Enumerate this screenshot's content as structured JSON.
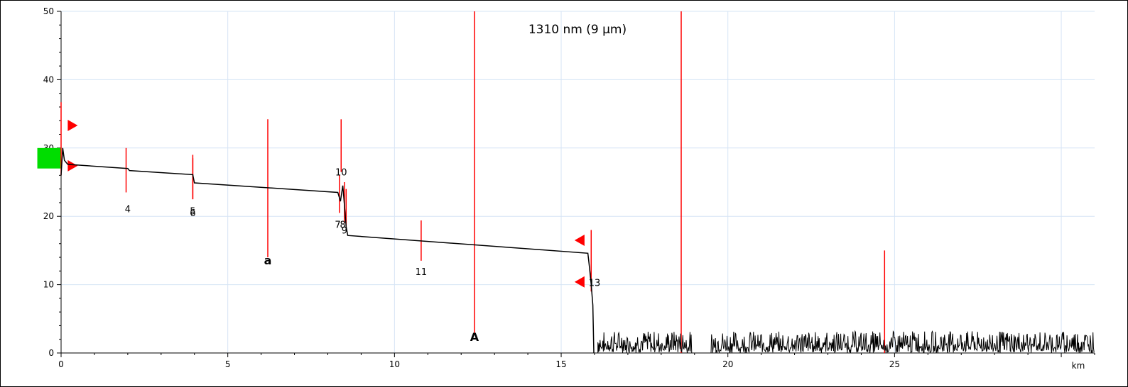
{
  "chart_data": {
    "type": "line",
    "title": "1310 nm (9 µm)",
    "x_unit": "km",
    "xlim": [
      0,
      31
    ],
    "ylim": [
      0,
      50
    ],
    "x_ticks": [
      0,
      5,
      10,
      15,
      20,
      25
    ],
    "x_tick_labels": [
      "0",
      "5",
      "10",
      "15",
      "20",
      "25"
    ],
    "y_ticks": [
      0,
      10,
      20,
      30,
      40,
      50
    ],
    "y_tick_labels": [
      "0",
      "10",
      "20",
      "30",
      "40",
      "50"
    ],
    "grid": true,
    "colors": {
      "trace": "#000000",
      "markers": "#ff0000",
      "launch_zone": "#00dd00",
      "grid": "#d6e4f5"
    },
    "trace_points": [
      [
        0.0,
        26.0
      ],
      [
        0.05,
        30.0
      ],
      [
        0.1,
        28.2
      ],
      [
        0.2,
        27.6
      ],
      [
        2.0,
        27.0
      ],
      [
        2.05,
        26.7
      ],
      [
        3.95,
        26.1
      ],
      [
        4.0,
        24.9
      ],
      [
        8.3,
        23.5
      ],
      [
        8.38,
        22.2
      ],
      [
        8.45,
        24.5
      ],
      [
        8.5,
        21.5
      ],
      [
        8.55,
        18.5
      ],
      [
        8.6,
        17.2
      ],
      [
        15.8,
        14.6
      ],
      [
        15.85,
        12.5
      ],
      [
        15.9,
        10.0
      ],
      [
        15.95,
        7.0
      ],
      [
        15.98,
        0.0
      ]
    ],
    "noise": {
      "x_start": 16.1,
      "x_end": 31.0,
      "max_level": 3.2
    },
    "events": [
      {
        "label": "4",
        "x": 1.95,
        "y_top": 30.0,
        "y_bottom": 23.5
      },
      {
        "label": "5",
        "x": 3.95,
        "y_top": 29.0,
        "y_bottom": 22.5
      },
      {
        "label": "6",
        "x": 3.95,
        "y_top": 28.5,
        "y_bottom": 22.5
      },
      {
        "label": "7",
        "x": 8.35,
        "y_top": 26.0,
        "y_bottom": 20.5
      },
      {
        "label": "8",
        "x": 8.5,
        "y_top": 25.0,
        "y_bottom": 19.0
      },
      {
        "label": "9",
        "x": 8.55,
        "y_top": 24.0,
        "y_bottom": 18.5
      },
      {
        "label": "10",
        "x": 8.4,
        "y_top": 34.2,
        "y_bottom": 26.5
      },
      {
        "label": "11",
        "x": 10.8,
        "y_top": 19.4,
        "y_bottom": 13.5
      },
      {
        "label": "13",
        "x": 15.9,
        "y_top": 18.0,
        "y_bottom": 9.0
      }
    ],
    "cursors": [
      {
        "label": "a",
        "x": 6.2,
        "y_top": 34.2,
        "y_bottom": 14.0
      },
      {
        "label": "A",
        "x": 12.4,
        "y_top": 50.0,
        "y_bottom": 2.8
      }
    ],
    "markers": [
      {
        "x": 18.6,
        "y_top": 50.0,
        "y_bottom": 0.0
      },
      {
        "x": 24.7,
        "y_top": 15.0,
        "y_bottom": 0.0
      },
      {
        "x": 0.0,
        "y_top": 36.7,
        "y_bottom": 26.0
      }
    ],
    "arrows": [
      {
        "x": 0.2,
        "y": 33.3,
        "dir": "right"
      },
      {
        "x": 0.2,
        "y": 27.4,
        "dir": "right"
      },
      {
        "x": 15.7,
        "y": 16.5,
        "dir": "left"
      },
      {
        "x": 15.7,
        "y": 10.4,
        "dir": "left"
      }
    ],
    "launch_zone": {
      "x_start": -0.5,
      "x_end": 0.0,
      "y_start": 27.0,
      "y_end": 30.0
    }
  }
}
